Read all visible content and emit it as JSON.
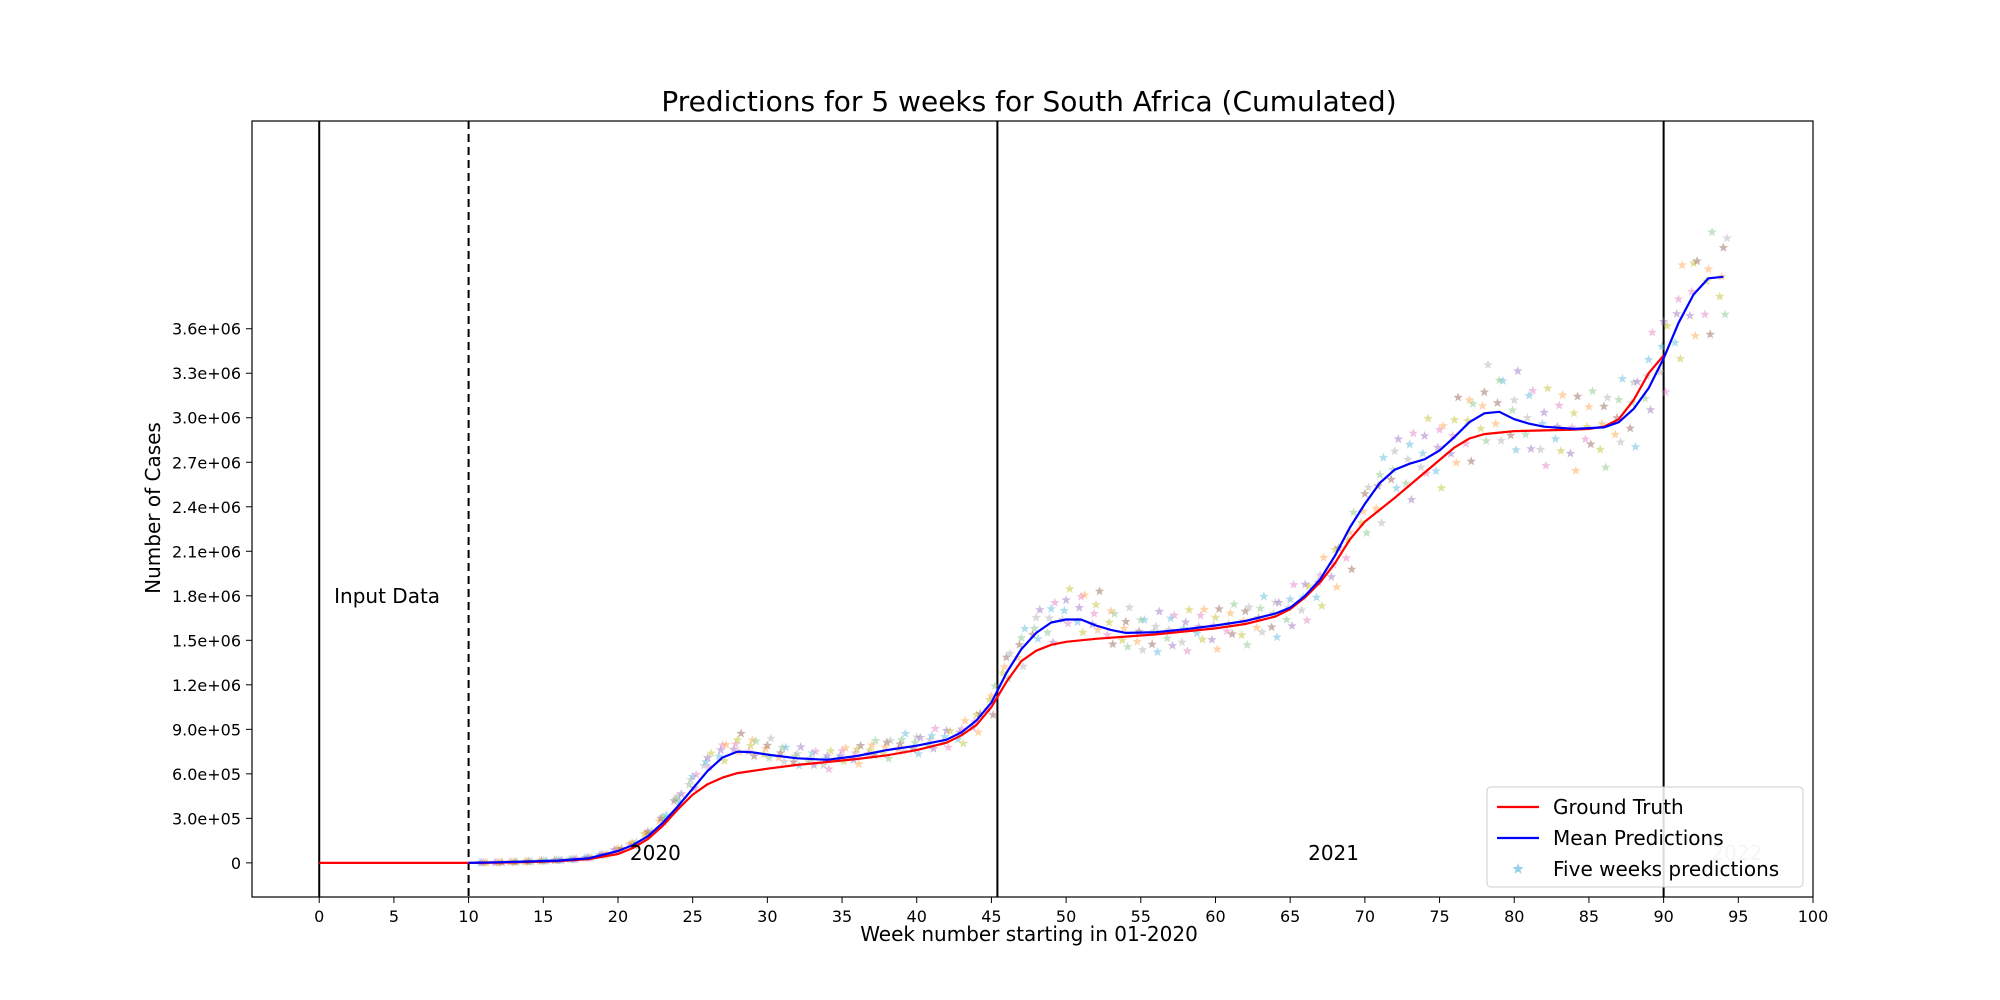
{
  "chart_data": {
    "type": "line",
    "title": "Predictions for 5 weeks for South Africa (Cumulated)",
    "xlabel": "Week number starting in 01-2020",
    "ylabel": "Number of Cases",
    "xlim": [
      -4.5,
      100
    ],
    "ylim": [
      -230000,
      5000000
    ],
    "x_ticks": [
      0,
      5,
      10,
      15,
      20,
      25,
      30,
      35,
      40,
      45,
      50,
      55,
      60,
      65,
      70,
      75,
      80,
      85,
      90,
      95,
      100
    ],
    "y_ticks": [
      0,
      300000,
      600000,
      900000,
      1200000,
      1500000,
      1800000,
      2100000,
      2400000,
      2700000,
      3000000,
      3300000,
      3600000
    ],
    "y_tick_labels": [
      "0",
      "3.0e+05",
      "6.0e+05",
      "9.0e+05",
      "1.2e+06",
      "1.5e+06",
      "1.8e+06",
      "2.1e+06",
      "2.4e+06",
      "2.7e+06",
      "3.0e+06",
      "3.3e+06",
      "3.6e+06"
    ],
    "grid": false,
    "legend_position": "bottom-right",
    "vertical_lines": [
      {
        "x": 0,
        "style": "solid"
      },
      {
        "x": 10,
        "style": "dashed"
      },
      {
        "x": 45.4,
        "style": "solid"
      },
      {
        "x": 90,
        "style": "solid"
      }
    ],
    "annotations": [
      {
        "text": "Input Data",
        "x": 1,
        "y": 1750000,
        "color": "#000000"
      },
      {
        "text": "2020",
        "x": 20.8,
        "y": 20000,
        "color": "#000000"
      },
      {
        "text": "2021",
        "x": 66.2,
        "y": 20000,
        "color": "#000000"
      },
      {
        "text": "2022",
        "x": 93.2,
        "y": 20000,
        "color": "#bbbbbb"
      }
    ],
    "series": [
      {
        "name": "Ground Truth",
        "color": "#ff0000",
        "kind": "line",
        "x": [
          0,
          5,
          10,
          12,
          14,
          16,
          18,
          20,
          21,
          22,
          23,
          24,
          25,
          26,
          27,
          28,
          30,
          32,
          34,
          36,
          38,
          40,
          42,
          43,
          44,
          45,
          46,
          47,
          48,
          49,
          50,
          52,
          54,
          56,
          58,
          60,
          62,
          64,
          65,
          66,
          67,
          68,
          69,
          70,
          72,
          74,
          76,
          77,
          78,
          80,
          82,
          84,
          85,
          86,
          87,
          88,
          89,
          90
        ],
        "y": [
          0,
          0,
          0,
          2000,
          6000,
          12000,
          25000,
          60000,
          100000,
          160000,
          250000,
          360000,
          460000,
          530000,
          575000,
          605000,
          635000,
          660000,
          680000,
          700000,
          725000,
          760000,
          810000,
          860000,
          930000,
          1050000,
          1220000,
          1360000,
          1430000,
          1470000,
          1490000,
          1510000,
          1525000,
          1540000,
          1560000,
          1580000,
          1610000,
          1660000,
          1710000,
          1790000,
          1890000,
          2020000,
          2180000,
          2300000,
          2460000,
          2630000,
          2800000,
          2860000,
          2890000,
          2910000,
          2915000,
          2920000,
          2925000,
          2940000,
          2990000,
          3120000,
          3300000,
          3420000
        ]
      },
      {
        "name": "Mean Predictions",
        "color": "#0000ff",
        "kind": "line",
        "x": [
          10,
          12,
          14,
          16,
          18,
          20,
          21,
          22,
          23,
          24,
          25,
          26,
          27,
          28,
          29,
          30,
          32,
          34,
          36,
          38,
          40,
          42,
          43,
          44,
          45,
          46,
          47,
          48,
          49,
          50,
          51,
          52,
          53,
          54,
          56,
          58,
          60,
          62,
          64,
          65,
          66,
          67,
          68,
          69,
          70,
          71,
          72,
          73,
          74,
          75,
          76,
          77,
          78,
          79,
          80,
          81,
          82,
          84,
          86,
          87,
          88,
          89,
          90,
          91,
          92,
          93,
          94
        ],
        "y": [
          0,
          4000,
          9000,
          15000,
          30000,
          80000,
          120000,
          180000,
          270000,
          380000,
          500000,
          620000,
          710000,
          750000,
          745000,
          730000,
          705000,
          695000,
          720000,
          760000,
          790000,
          830000,
          880000,
          960000,
          1080000,
          1280000,
          1440000,
          1550000,
          1620000,
          1640000,
          1640000,
          1600000,
          1570000,
          1550000,
          1555000,
          1575000,
          1600000,
          1630000,
          1680000,
          1720000,
          1800000,
          1910000,
          2070000,
          2260000,
          2420000,
          2560000,
          2650000,
          2690000,
          2720000,
          2780000,
          2870000,
          2970000,
          3030000,
          3040000,
          2990000,
          2960000,
          2940000,
          2925000,
          2935000,
          2970000,
          3060000,
          3200000,
          3400000,
          3640000,
          3830000,
          3940000,
          3950000
        ]
      },
      {
        "name": "Five weeks predictions",
        "color": "#4fb3d9",
        "kind": "scatter",
        "marker": "star",
        "x": [
          11,
          12,
          13,
          14,
          15,
          16,
          17,
          18,
          19,
          20,
          21,
          22,
          23,
          24,
          25,
          26,
          27,
          28,
          29,
          30,
          31,
          32,
          33,
          34,
          35,
          36,
          37,
          38,
          39,
          40,
          41,
          42,
          43,
          44,
          45,
          46,
          47,
          48,
          49,
          50,
          51,
          52,
          53,
          54,
          55,
          56,
          57,
          58,
          59,
          60,
          61,
          62,
          63,
          64,
          65,
          66,
          67,
          68,
          69,
          70,
          71,
          72,
          73,
          74,
          75,
          76,
          77,
          78,
          79,
          80,
          81,
          82,
          83,
          84,
          85,
          86,
          87,
          88,
          89,
          90,
          91,
          92,
          93,
          94
        ],
        "y": [
          2000,
          3000,
          6000,
          9000,
          13000,
          18000,
          25000,
          35000,
          55000,
          90000,
          130000,
          200000,
          300000,
          430000,
          560000,
          680000,
          760000,
          800000,
          790000,
          770000,
          740000,
          720000,
          705000,
          700000,
          720000,
          740000,
          760000,
          780000,
          800000,
          810000,
          830000,
          850000,
          880000,
          950000,
          1100000,
          1320000,
          1470000,
          1580000,
          1650000,
          1700000,
          1720000,
          1680000,
          1620000,
          1580000,
          1560000,
          1560000,
          1570000,
          1580000,
          1590000,
          1600000,
          1610000,
          1630000,
          1650000,
          1680000,
          1720000,
          1790000,
          1890000,
          2010000,
          2180000,
          2370000,
          2540000,
          2650000,
          2720000,
          2760000,
          2800000,
          2880000,
          2980000,
          3080000,
          3100000,
          3050000,
          3000000,
          2960000,
          2940000,
          2935000,
          2940000,
          2960000,
          3000000,
          3100000,
          3280000,
          3480000,
          3700000,
          3850000,
          3920000,
          3950000
        ]
      }
    ]
  }
}
